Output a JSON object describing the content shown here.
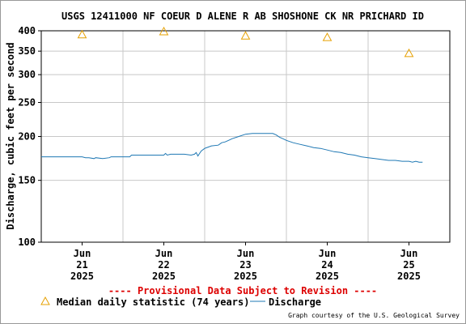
{
  "chart_data": {
    "type": "line",
    "title": "USGS 12411000 NF COEUR D ALENE R AB SHOSHONE CK NR PRICHARD ID",
    "ylabel": "Discharge, cubic feet per second",
    "xlabel": "",
    "y_scale": "log",
    "ylim": [
      100,
      400
    ],
    "y_ticks": [
      100,
      150,
      200,
      250,
      300,
      350,
      400
    ],
    "x_range": [
      "2025-06-20T12:00",
      "2025-06-25T12:00"
    ],
    "x_ticks": [
      {
        "month": "Jun",
        "day": "21",
        "year": "2025",
        "x": "2025-06-21T00:00"
      },
      {
        "month": "Jun",
        "day": "22",
        "year": "2025",
        "x": "2025-06-22T00:00"
      },
      {
        "month": "Jun",
        "day": "23",
        "year": "2025",
        "x": "2025-06-23T00:00"
      },
      {
        "month": "Jun",
        "day": "24",
        "year": "2025",
        "x": "2025-06-24T00:00"
      },
      {
        "month": "Jun",
        "day": "25",
        "year": "2025",
        "x": "2025-06-25T00:00"
      }
    ],
    "grid": true,
    "series": [
      {
        "name": "Discharge",
        "color": "#1f78b4",
        "style": "line",
        "points": [
          [
            "2025-06-20T12:00",
            175
          ],
          [
            "2025-06-21T00:00",
            175
          ],
          [
            "2025-06-21T01:00",
            174
          ],
          [
            "2025-06-21T02:00",
            174
          ],
          [
            "2025-06-21T03:30",
            173
          ],
          [
            "2025-06-21T04:00",
            174
          ],
          [
            "2025-06-21T06:00",
            173
          ],
          [
            "2025-06-21T08:00",
            174
          ],
          [
            "2025-06-21T08:30",
            175
          ],
          [
            "2025-06-21T14:00",
            175
          ],
          [
            "2025-06-21T14:30",
            177
          ],
          [
            "2025-06-22T00:00",
            177
          ],
          [
            "2025-06-22T00:30",
            179
          ],
          [
            "2025-06-22T01:00",
            177
          ],
          [
            "2025-06-22T02:00",
            178
          ],
          [
            "2025-06-22T04:00",
            178
          ],
          [
            "2025-06-22T06:00",
            178
          ],
          [
            "2025-06-22T08:00",
            177
          ],
          [
            "2025-06-22T09:00",
            178
          ],
          [
            "2025-06-22T09:30",
            180
          ],
          [
            "2025-06-22T10:00",
            176
          ],
          [
            "2025-06-22T10:30",
            179
          ],
          [
            "2025-06-22T11:00",
            182
          ],
          [
            "2025-06-22T12:00",
            185
          ],
          [
            "2025-06-22T14:00",
            188
          ],
          [
            "2025-06-22T16:00",
            189
          ],
          [
            "2025-06-22T17:00",
            192
          ],
          [
            "2025-06-22T18:00",
            193
          ],
          [
            "2025-06-22T19:00",
            195
          ],
          [
            "2025-06-22T20:00",
            197
          ],
          [
            "2025-06-22T22:00",
            200
          ],
          [
            "2025-06-23T00:00",
            203
          ],
          [
            "2025-06-23T02:00",
            204
          ],
          [
            "2025-06-23T06:00",
            204
          ],
          [
            "2025-06-23T08:00",
            204
          ],
          [
            "2025-06-23T09:00",
            202
          ],
          [
            "2025-06-23T10:00",
            199
          ],
          [
            "2025-06-23T11:00",
            197
          ],
          [
            "2025-06-23T12:00",
            195
          ],
          [
            "2025-06-23T14:00",
            192
          ],
          [
            "2025-06-23T16:00",
            190
          ],
          [
            "2025-06-23T18:00",
            188
          ],
          [
            "2025-06-23T20:00",
            186
          ],
          [
            "2025-06-23T22:00",
            185
          ],
          [
            "2025-06-24T00:00",
            183
          ],
          [
            "2025-06-24T02:00",
            181
          ],
          [
            "2025-06-24T04:00",
            180
          ],
          [
            "2025-06-24T06:00",
            178
          ],
          [
            "2025-06-24T08:00",
            177
          ],
          [
            "2025-06-24T10:00",
            175
          ],
          [
            "2025-06-24T12:00",
            174
          ],
          [
            "2025-06-24T14:00",
            173
          ],
          [
            "2025-06-24T16:00",
            172
          ],
          [
            "2025-06-24T18:00",
            171
          ],
          [
            "2025-06-24T20:00",
            171
          ],
          [
            "2025-06-24T22:00",
            170
          ],
          [
            "2025-06-25T00:00",
            170
          ],
          [
            "2025-06-25T01:00",
            169
          ],
          [
            "2025-06-25T02:00",
            170
          ],
          [
            "2025-06-25T03:00",
            169
          ],
          [
            "2025-06-25T04:00",
            169
          ]
        ]
      },
      {
        "name": "Median daily statistic (74 years)",
        "color": "#e6a000",
        "style": "triangle",
        "points": [
          [
            "2025-06-21T00:00",
            390
          ],
          [
            "2025-06-22T00:00",
            398
          ],
          [
            "2025-06-23T00:00",
            387
          ],
          [
            "2025-06-24T00:00",
            383
          ],
          [
            "2025-06-25T00:00",
            345
          ]
        ]
      }
    ],
    "annotation": "---- Provisional Data Subject to Revision ----",
    "credit": "Graph courtesy of the U.S. Geological Survey"
  }
}
